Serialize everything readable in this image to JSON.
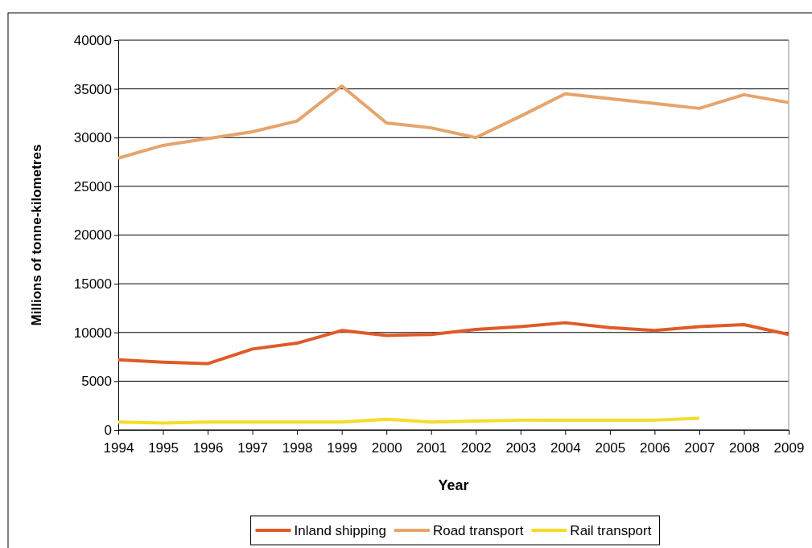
{
  "chart_data": {
    "type": "line",
    "xlabel": "Year",
    "ylabel": "Millions of tonne-kilometres",
    "x": [
      1994,
      1995,
      1996,
      1997,
      1998,
      1999,
      2000,
      2001,
      2002,
      2003,
      2004,
      2005,
      2006,
      2007,
      2008,
      2009
    ],
    "xlim": [
      1994,
      2009
    ],
    "xticks": [
      1994,
      1995,
      1996,
      1997,
      1998,
      1999,
      2000,
      2001,
      2002,
      2003,
      2004,
      2005,
      2006,
      2007,
      2008,
      2009
    ],
    "ylim": [
      0,
      40000
    ],
    "yticks": [
      0,
      5000,
      10000,
      15000,
      20000,
      25000,
      30000,
      35000,
      40000
    ],
    "grid": "y",
    "legend": "bottom",
    "marker": "none",
    "line_style": "solid",
    "series": [
      {
        "name": "Inland shipping",
        "color": "#e05a28",
        "values": [
          7200,
          6950,
          6800,
          8300,
          8900,
          10200,
          9700,
          9800,
          10300,
          10600,
          11000,
          10500,
          10200,
          10600,
          10800,
          9800
        ]
      },
      {
        "name": "Road transport",
        "color": "#e6a46c",
        "values": [
          27900,
          29200,
          29900,
          30600,
          31700,
          35300,
          31500,
          31000,
          30000,
          32200,
          34500,
          34000,
          33500,
          33000,
          34400,
          33600
        ]
      },
      {
        "name": "Rail transport",
        "color": "#f5dc28",
        "values": [
          800,
          700,
          800,
          800,
          800,
          800,
          1100,
          800,
          900,
          1000,
          1000,
          1000,
          1000,
          1200,
          null,
          null
        ]
      }
    ]
  }
}
